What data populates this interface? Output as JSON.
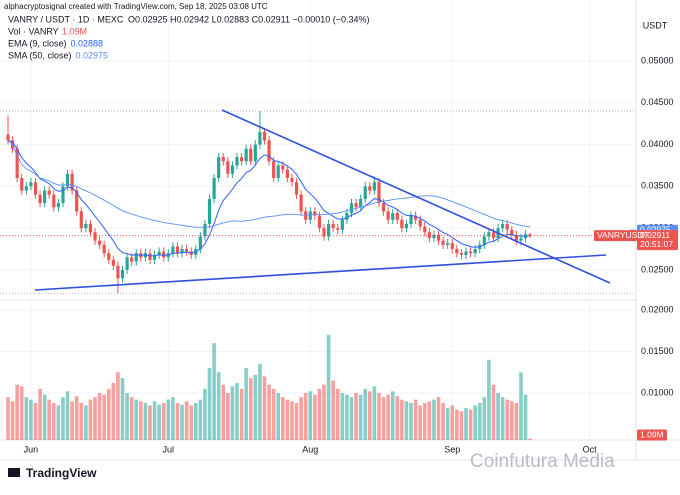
{
  "chart_data": {
    "type": "candlestick",
    "credit": "alphacryptosignal created with TradingView.com, Sep 18, 2025 03:08 UTC",
    "symbol": "VANRY / USDT · 1D · MEXC",
    "ohlc_text": "O0.02925 H0.02942 L0.02883 C0.02911 −0.00010 (−0.34%)",
    "volume_name": "Vol · VANRY",
    "volume_label": "1.09M",
    "currency": "USDT",
    "ticker_tag": "VANRYUSDT",
    "last_price": 0.02911,
    "countdown": "20:51:07",
    "indicators": [
      {
        "name": "EMA (9, close)",
        "kind": "ema",
        "period": 9,
        "last": 0.02888,
        "color": "#2962ff"
      },
      {
        "name": "SMA (50, close)",
        "kind": "sma",
        "period": 50,
        "last": 0.02975,
        "color": "#5b8ff9"
      }
    ],
    "up_color": "#26a69a",
    "down_color": "#ef5350",
    "xticks": [
      {
        "value": 5,
        "label": "Jun"
      },
      {
        "value": 35,
        "label": "Jul"
      },
      {
        "value": 66,
        "label": "Aug"
      },
      {
        "value": 97,
        "label": "Sep"
      },
      {
        "value": 127,
        "label": "Oct"
      }
    ],
    "ylim": [
      0.0214,
      0.0573
    ],
    "yticks": [
      {
        "value": 0.025,
        "label": "0.02500"
      },
      {
        "value": 0.03,
        "label": "0.03000"
      },
      {
        "value": 0.035,
        "label": "0.03500"
      },
      {
        "value": 0.04,
        "label": "0.04000"
      },
      {
        "value": 0.045,
        "label": "0.04500"
      },
      {
        "value": 0.05,
        "label": "0.05000"
      }
    ],
    "volume_ylim": [
      0.00434,
      0.0212
    ],
    "volume_ticks": [
      {
        "value": 0.01,
        "label": "0.01000"
      },
      {
        "value": 0.015,
        "label": "0.01500"
      },
      {
        "value": 0.02,
        "label": "0.02000"
      }
    ],
    "open": [
      0.0412,
      0.0405,
      0.0395,
      0.036,
      0.0345,
      0.035,
      0.0355,
      0.034,
      0.033,
      0.0345,
      0.034,
      0.0325,
      0.033,
      0.035,
      0.0365,
      0.0345,
      0.032,
      0.03,
      0.0305,
      0.0295,
      0.0285,
      0.028,
      0.027,
      0.0262,
      0.0255,
      0.024,
      0.025,
      0.0265,
      0.026,
      0.027,
      0.0265,
      0.027,
      0.0262,
      0.0268,
      0.0272,
      0.0265,
      0.027,
      0.0278,
      0.027,
      0.0275,
      0.0272,
      0.0268,
      0.0275,
      0.029,
      0.0305,
      0.0335,
      0.036,
      0.0385,
      0.038,
      0.0365,
      0.0375,
      0.0385,
      0.038,
      0.0395,
      0.038,
      0.04,
      0.0415,
      0.0405,
      0.038,
      0.036,
      0.0375,
      0.037,
      0.036,
      0.0355,
      0.034,
      0.032,
      0.031,
      0.032,
      0.0315,
      0.03,
      0.029,
      0.0305,
      0.03,
      0.0298,
      0.031,
      0.0318,
      0.033,
      0.0325,
      0.0335,
      0.035,
      0.0345,
      0.0355,
      0.033,
      0.032,
      0.031,
      0.0318,
      0.031,
      0.03,
      0.0305,
      0.0315,
      0.031,
      0.0302,
      0.0295,
      0.0288,
      0.0292,
      0.0285,
      0.028,
      0.0282,
      0.0275,
      0.027,
      0.0268,
      0.0272,
      0.027,
      0.0275,
      0.028,
      0.029,
      0.0295,
      0.0288,
      0.03,
      0.0305,
      0.0298,
      0.0292,
      0.0285,
      0.0288,
      0.02925
    ],
    "high": [
      0.0435,
      0.041,
      0.04,
      0.0365,
      0.0355,
      0.036,
      0.036,
      0.0345,
      0.035,
      0.035,
      0.0345,
      0.0335,
      0.0355,
      0.037,
      0.037,
      0.035,
      0.0325,
      0.031,
      0.031,
      0.03,
      0.029,
      0.0285,
      0.0275,
      0.0267,
      0.026,
      0.0255,
      0.027,
      0.027,
      0.0275,
      0.0275,
      0.0275,
      0.0275,
      0.0273,
      0.0277,
      0.0277,
      0.0275,
      0.0283,
      0.0283,
      0.028,
      0.028,
      0.0277,
      0.028,
      0.0295,
      0.031,
      0.034,
      0.0365,
      0.039,
      0.039,
      0.0385,
      0.038,
      0.039,
      0.039,
      0.04,
      0.04,
      0.0405,
      0.044,
      0.042,
      0.041,
      0.0385,
      0.038,
      0.038,
      0.0375,
      0.0365,
      0.036,
      0.0345,
      0.0325,
      0.0325,
      0.0325,
      0.032,
      0.0305,
      0.031,
      0.031,
      0.0305,
      0.0315,
      0.0323,
      0.0335,
      0.0335,
      0.034,
      0.0355,
      0.0355,
      0.0362,
      0.036,
      0.0335,
      0.0325,
      0.0323,
      0.0323,
      0.0315,
      0.031,
      0.032,
      0.032,
      0.0315,
      0.0307,
      0.03,
      0.0297,
      0.0297,
      0.029,
      0.0287,
      0.0287,
      0.028,
      0.0275,
      0.0277,
      0.0277,
      0.028,
      0.0285,
      0.0295,
      0.03,
      0.03,
      0.0305,
      0.031,
      0.031,
      0.0303,
      0.0297,
      0.0293,
      0.02975,
      0.02942
    ],
    "low": [
      0.04,
      0.039,
      0.0355,
      0.034,
      0.034,
      0.0345,
      0.0335,
      0.0325,
      0.0325,
      0.0335,
      0.032,
      0.032,
      0.0325,
      0.0345,
      0.034,
      0.0315,
      0.0295,
      0.0295,
      0.029,
      0.028,
      0.0275,
      0.0265,
      0.0257,
      0.025,
      0.0222,
      0.0235,
      0.0245,
      0.0255,
      0.0255,
      0.026,
      0.026,
      0.0257,
      0.0257,
      0.0263,
      0.026,
      0.026,
      0.0265,
      0.0265,
      0.0265,
      0.0267,
      0.0263,
      0.0263,
      0.027,
      0.0285,
      0.03,
      0.033,
      0.0355,
      0.0375,
      0.036,
      0.036,
      0.037,
      0.0375,
      0.0375,
      0.0375,
      0.0375,
      0.0395,
      0.04,
      0.0375,
      0.0355,
      0.0355,
      0.0365,
      0.0355,
      0.035,
      0.0335,
      0.0315,
      0.0305,
      0.0305,
      0.031,
      0.0295,
      0.0285,
      0.0285,
      0.0295,
      0.0293,
      0.0293,
      0.0305,
      0.0313,
      0.032,
      0.032,
      0.033,
      0.034,
      0.034,
      0.0325,
      0.0315,
      0.0305,
      0.0305,
      0.0305,
      0.0295,
      0.0295,
      0.03,
      0.0305,
      0.0297,
      0.029,
      0.0283,
      0.0283,
      0.028,
      0.0275,
      0.0275,
      0.027,
      0.0265,
      0.0263,
      0.0263,
      0.0265,
      0.0265,
      0.027,
      0.0275,
      0.0285,
      0.0283,
      0.0283,
      0.0295,
      0.0293,
      0.0287,
      0.028,
      0.028,
      0.0283,
      0.02883
    ],
    "close": [
      0.0405,
      0.0395,
      0.036,
      0.0345,
      0.035,
      0.0355,
      0.034,
      0.033,
      0.0345,
      0.034,
      0.0325,
      0.033,
      0.035,
      0.0365,
      0.0345,
      0.032,
      0.03,
      0.0305,
      0.0295,
      0.0285,
      0.028,
      0.027,
      0.0262,
      0.0255,
      0.024,
      0.025,
      0.0265,
      0.026,
      0.027,
      0.0265,
      0.027,
      0.0262,
      0.0268,
      0.0272,
      0.0265,
      0.027,
      0.0278,
      0.027,
      0.0275,
      0.0272,
      0.0268,
      0.0275,
      0.029,
      0.0305,
      0.0335,
      0.036,
      0.0385,
      0.038,
      0.0365,
      0.0375,
      0.0385,
      0.038,
      0.0395,
      0.038,
      0.04,
      0.0415,
      0.0405,
      0.038,
      0.036,
      0.0375,
      0.037,
      0.036,
      0.0355,
      0.034,
      0.032,
      0.031,
      0.032,
      0.0315,
      0.03,
      0.029,
      0.0305,
      0.03,
      0.0298,
      0.031,
      0.0318,
      0.033,
      0.0325,
      0.0335,
      0.035,
      0.0345,
      0.0355,
      0.033,
      0.032,
      0.031,
      0.0318,
      0.031,
      0.03,
      0.0305,
      0.0315,
      0.031,
      0.0302,
      0.0295,
      0.0288,
      0.0292,
      0.0285,
      0.028,
      0.0282,
      0.0275,
      0.027,
      0.0268,
      0.0272,
      0.027,
      0.0275,
      0.028,
      0.029,
      0.0295,
      0.0288,
      0.03,
      0.0305,
      0.0298,
      0.0292,
      0.0285,
      0.0288,
      0.02925,
      0.02911
    ],
    "volume": [
      0.0095,
      0.009,
      0.011,
      0.0108,
      0.0095,
      0.0092,
      0.0088,
      0.0105,
      0.0098,
      0.0092,
      0.0088,
      0.0085,
      0.0095,
      0.0102,
      0.009,
      0.0096,
      0.0088,
      0.0085,
      0.0092,
      0.0095,
      0.01,
      0.0098,
      0.0105,
      0.0112,
      0.0125,
      0.0118,
      0.01,
      0.0095,
      0.0092,
      0.009,
      0.0088,
      0.0085,
      0.009,
      0.0086,
      0.0088,
      0.0092,
      0.0095,
      0.0088,
      0.0086,
      0.009,
      0.0085,
      0.0088,
      0.0092,
      0.0105,
      0.013,
      0.016,
      0.0125,
      0.011,
      0.01,
      0.0108,
      0.0112,
      0.0105,
      0.013,
      0.0118,
      0.0122,
      0.0135,
      0.012,
      0.011,
      0.0105,
      0.01,
      0.0095,
      0.0092,
      0.009,
      0.0088,
      0.0095,
      0.01,
      0.0102,
      0.0098,
      0.0105,
      0.011,
      0.017,
      0.0115,
      0.0105,
      0.01,
      0.0098,
      0.0095,
      0.01,
      0.0098,
      0.0105,
      0.0102,
      0.0108,
      0.01,
      0.0095,
      0.0098,
      0.0102,
      0.0096,
      0.0092,
      0.009,
      0.0088,
      0.0092,
      0.0085,
      0.0088,
      0.009,
      0.0092,
      0.0095,
      0.0088,
      0.0082,
      0.0085,
      0.008,
      0.0078,
      0.0082,
      0.008,
      0.0085,
      0.0088,
      0.0095,
      0.014,
      0.011,
      0.01,
      0.0095,
      0.0092,
      0.009,
      0.0088,
      0.0125,
      0.0098,
      0.0045
    ],
    "watermark": "Coinfutura Media",
    "logo_text": "TradingView"
  }
}
